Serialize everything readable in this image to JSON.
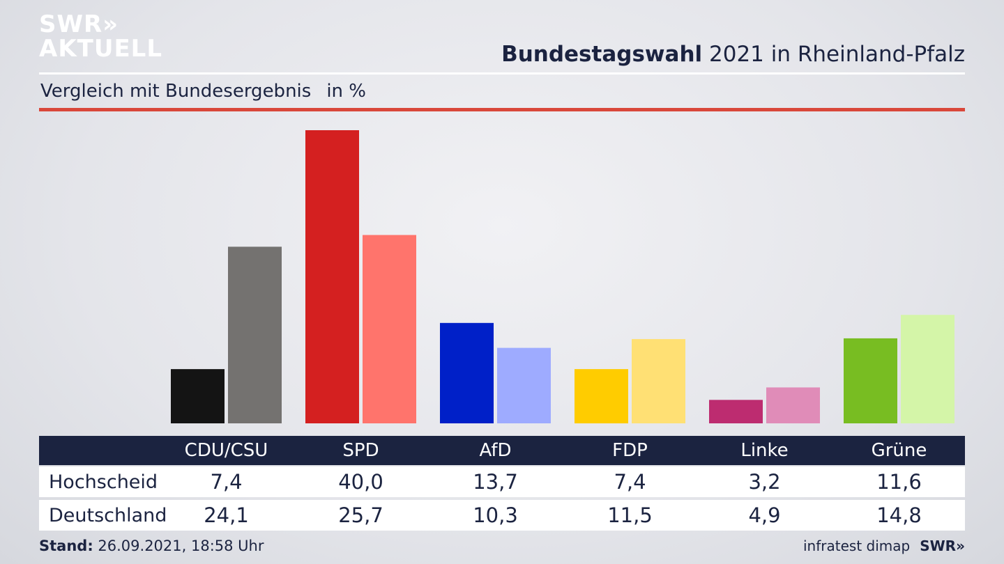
{
  "branding": {
    "logo_line1": "SWR»",
    "logo_line2": "AKTUELL",
    "footer_logo": "SWR»"
  },
  "header": {
    "title_bold": "Bundestagswahl",
    "title_rest": " 2021 in Rheinland-Pfalz"
  },
  "subheader": {
    "text": "Vergleich mit Bundesergebnis",
    "unit": "in %"
  },
  "footer": {
    "stand_label": "Stand:",
    "stand_value": " 26.09.2021, 18:58 Uhr",
    "source": "infratest dimap"
  },
  "chart_data": {
    "type": "bar",
    "title": "Bundestagswahl 2021 in Rheinland-Pfalz",
    "subtitle": "Vergleich mit Bundesergebnis",
    "ylabel": "in %",
    "ylim": [
      0,
      40
    ],
    "categories": [
      "CDU/CSU",
      "SPD",
      "AfD",
      "FDP",
      "Linke",
      "Grüne"
    ],
    "series": [
      {
        "name": "Hochscheid",
        "values": [
          7.4,
          40.0,
          13.7,
          7.4,
          3.2,
          11.6
        ],
        "display": [
          "7,4",
          "40,0",
          "13,7",
          "7,4",
          "3,2",
          "11,6"
        ]
      },
      {
        "name": "Deutschland",
        "values": [
          24.1,
          25.7,
          10.3,
          11.5,
          4.9,
          14.8
        ],
        "display": [
          "24,1",
          "25,7",
          "10,3",
          "11,5",
          "4,9",
          "14,8"
        ]
      }
    ],
    "colors": {
      "Hochscheid": [
        "#141414",
        "#d42020",
        "#0020c8",
        "#ffcc00",
        "#bd2c70",
        "#78bd22"
      ],
      "Deutschland": [
        "#747270",
        "#ff746c",
        "#9eabff",
        "#ffe074",
        "#e08cb8",
        "#d4f5a8"
      ]
    },
    "grid": false,
    "legend": "table-below"
  }
}
